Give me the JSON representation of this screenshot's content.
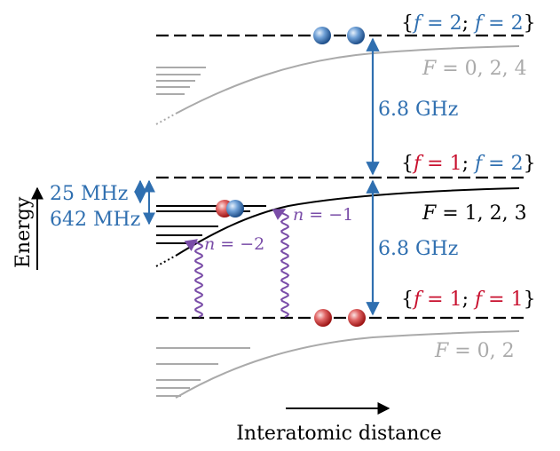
{
  "colors": {
    "blue": "#2f6fb0",
    "red": "#c8102e",
    "purple": "#7a4da8",
    "gray": "#aaaaaa",
    "black": "#000000"
  },
  "thresholds": {
    "top": {
      "open": "{",
      "f": "f",
      "eq": " = ",
      "v1": "2",
      "sep": "; ",
      "v2": "2",
      "close": "}"
    },
    "middle": {
      "open": "{",
      "f": "f",
      "eq": " = ",
      "v1": "1",
      "sep": "; ",
      "v2": "2",
      "close": "}"
    },
    "bottom": {
      "open": "{",
      "f": "f",
      "eq": " = ",
      "v1": "1",
      "sep": "; ",
      "v2": "1",
      "close": "}"
    }
  },
  "channels": {
    "top": {
      "var": "F",
      "rest": " = 0, 2, 4"
    },
    "middle": {
      "var": "F",
      "rest": " = 1, 2, 3"
    },
    "bottom": {
      "var": "F",
      "rest": " = 0, 2"
    }
  },
  "splittings": {
    "upper": "6.8 GHz",
    "lower": "6.8 GHz",
    "small": "25 MHz",
    "large": "642 MHz"
  },
  "transitions": {
    "left": {
      "var": "n",
      "rest": " = −2"
    },
    "right": {
      "var": "n",
      "rest": " = −1"
    }
  },
  "axes": {
    "y": "Energy",
    "x": "Interatomic distance"
  }
}
